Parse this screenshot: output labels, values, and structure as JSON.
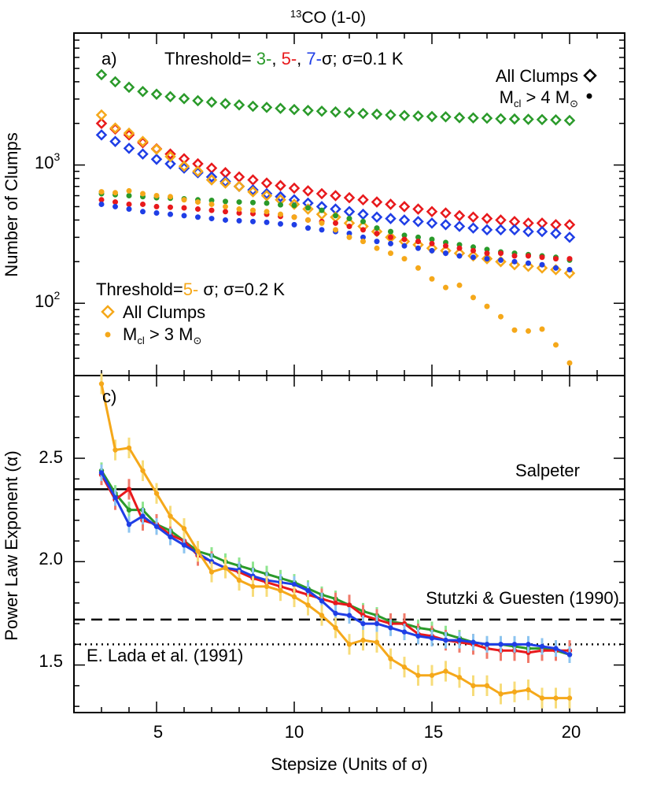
{
  "figure_title": "13CO (1-0)",
  "title_superscript": "13",
  "title_main": "CO (1-0)",
  "colors": {
    "green": "#2a9a2a",
    "red": "#e8191c",
    "blue": "#1f3ee6",
    "orange": "#f5a81a",
    "green_err": "#8fe58f",
    "red_err": "#f07a6a",
    "blue_err": "#8cc4f0",
    "orange_err": "#f7dc7a"
  },
  "chart_data": [
    {
      "panel": "a)",
      "type": "scatter",
      "yscale": "log",
      "xlim": [
        2,
        22
      ],
      "ylim": [
        30,
        9000
      ],
      "ylabel": "Number of Clumps",
      "ytick_base": "10",
      "yticks": [
        {
          "value": 100,
          "exp": "2"
        },
        {
          "value": 1000,
          "exp": "3"
        }
      ],
      "legend_top": {
        "prefix": "Threshold= ",
        "t3": "3-",
        "sep1": ", ",
        "t5": "5-",
        "sep2": ", ",
        "t7": "7-",
        "suffix": "σ; σ=0.1 K",
        "all_clumps": "All Clumps",
        "mass_prefix": "M",
        "mass_sub": "cl",
        "mass_suffix": " > 4 M",
        "mass_sun": "⊙"
      },
      "legend_bottom": {
        "prefix": "Threshold=",
        "t5": "5-",
        "suffix": " σ; σ=0.2 K",
        "all_clumps": "All Clumps",
        "mass_prefix": "M",
        "mass_sub": "cl",
        "mass_suffix": " > 3 M",
        "mass_sun": "⊙"
      },
      "x": [
        3.0,
        3.5,
        4.0,
        4.5,
        5.0,
        5.5,
        6.0,
        6.5,
        7.0,
        7.5,
        8.0,
        8.5,
        9.0,
        9.5,
        10.0,
        10.5,
        11.0,
        11.5,
        12.0,
        12.5,
        13.0,
        13.5,
        14.0,
        14.5,
        15.0,
        15.5,
        16.0,
        16.5,
        17.0,
        17.5,
        18.0,
        18.5,
        19.0,
        19.5,
        20.0
      ],
      "series": [
        {
          "name": "3-sigma all clumps",
          "color_key": "green",
          "marker": "diamond",
          "values": [
            4500,
            4000,
            3650,
            3400,
            3250,
            3120,
            3020,
            2920,
            2850,
            2780,
            2720,
            2660,
            2610,
            2570,
            2520,
            2480,
            2450,
            2420,
            2390,
            2360,
            2330,
            2300,
            2280,
            2260,
            2240,
            2230,
            2200,
            2190,
            2180,
            2160,
            2150,
            2140,
            2130,
            2120,
            2100
          ]
        },
        {
          "name": "5-sigma all clumps",
          "color_key": "red",
          "marker": "diamond",
          "values": [
            2000,
            1820,
            1650,
            1450,
            1310,
            1200,
            1110,
            1020,
            950,
            880,
            820,
            780,
            740,
            710,
            680,
            650,
            620,
            600,
            580,
            560,
            540,
            520,
            500,
            480,
            460,
            450,
            430,
            420,
            410,
            400,
            390,
            380,
            380,
            370,
            370
          ]
        },
        {
          "name": "7-sigma all clumps",
          "color_key": "blue",
          "marker": "diamond",
          "values": [
            1650,
            1480,
            1320,
            1200,
            1100,
            1020,
            950,
            880,
            820,
            760,
            700,
            660,
            620,
            590,
            560,
            530,
            500,
            480,
            460,
            440,
            420,
            410,
            400,
            390,
            380,
            370,
            360,
            350,
            340,
            340,
            340,
            330,
            330,
            320,
            300
          ]
        },
        {
          "name": "5-sigma all clumps (0.2 K)",
          "color_key": "orange",
          "marker": "diamond",
          "values": [
            2300,
            1850,
            1700,
            1480,
            1300,
            1150,
            980,
            900,
            780,
            740,
            700,
            640,
            600,
            560,
            520,
            480,
            440,
            420,
            380,
            360,
            330,
            300,
            280,
            265,
            250,
            240,
            230,
            220,
            210,
            200,
            190,
            185,
            180,
            175,
            165
          ]
        },
        {
          "name": "3-sigma M>4",
          "color_key": "green",
          "marker": "dot",
          "values": [
            620,
            610,
            600,
            590,
            580,
            575,
            570,
            560,
            555,
            545,
            540,
            535,
            530,
            515,
            510,
            490,
            470,
            430,
            410,
            390,
            350,
            330,
            310,
            300,
            290,
            275,
            265,
            255,
            245,
            235,
            230,
            225,
            220,
            215,
            205
          ]
        },
        {
          "name": "5-sigma M>4",
          "color_key": "red",
          "marker": "dot",
          "values": [
            560,
            540,
            520,
            520,
            500,
            495,
            490,
            480,
            470,
            460,
            450,
            445,
            440,
            425,
            420,
            400,
            390,
            380,
            360,
            340,
            320,
            300,
            290,
            280,
            270,
            260,
            250,
            240,
            230,
            230,
            220,
            220,
            215,
            210,
            210
          ]
        },
        {
          "name": "7-sigma M>4",
          "color_key": "blue",
          "marker": "dot",
          "values": [
            520,
            500,
            480,
            460,
            450,
            440,
            430,
            420,
            410,
            400,
            395,
            390,
            385,
            375,
            370,
            350,
            340,
            330,
            320,
            300,
            280,
            270,
            260,
            250,
            240,
            230,
            220,
            215,
            210,
            205,
            200,
            195,
            190,
            180,
            175
          ]
        },
        {
          "name": "5-sigma M>3 (0.2 K)",
          "color_key": "orange",
          "marker": "dot",
          "values": [
            640,
            630,
            650,
            620,
            600,
            590,
            560,
            540,
            520,
            500,
            480,
            470,
            460,
            440,
            420,
            400,
            380,
            340,
            300,
            280,
            250,
            230,
            210,
            180,
            150,
            130,
            135,
            110,
            95,
            80,
            64,
            63,
            65,
            50,
            37
          ]
        }
      ]
    },
    {
      "panel": "c)",
      "type": "line",
      "xlim": [
        2,
        22
      ],
      "ylim": [
        1.27,
        2.9
      ],
      "xlabel_prefix": "Stepsize (Units of ",
      "xlabel_sigma": "σ",
      "xlabel_suffix": ")",
      "ylabel": "Power Law Exponent (α)",
      "xticks": [
        "5",
        "10",
        "15",
        "20"
      ],
      "yticks": [
        "1.5",
        "2.0",
        "2.5"
      ],
      "reference_lines": [
        {
          "label": "Salpeter",
          "value": 2.35,
          "style": "solid"
        },
        {
          "label": "Stutzki & Guesten (1990)",
          "value": 1.72,
          "style": "dashed"
        },
        {
          "label": "E. Lada et al. (1991)",
          "value": 1.6,
          "style": "dotted"
        }
      ],
      "x": [
        3.0,
        3.5,
        4.0,
        4.5,
        5.0,
        5.5,
        6.0,
        6.5,
        7.0,
        7.5,
        8.0,
        8.5,
        9.0,
        9.5,
        10.0,
        10.5,
        11.0,
        11.5,
        12.0,
        12.5,
        13.0,
        13.5,
        14.0,
        14.5,
        15.0,
        15.5,
        16.0,
        16.5,
        17.0,
        17.5,
        18.0,
        18.5,
        19.0,
        19.5,
        20.0
      ],
      "series": [
        {
          "name": "3-sigma (0.1 K)",
          "color_key": "green",
          "err": 0.04,
          "values": [
            2.44,
            2.33,
            2.25,
            2.25,
            2.18,
            2.15,
            2.1,
            2.05,
            2.03,
            2.0,
            1.98,
            1.96,
            1.94,
            1.92,
            1.9,
            1.87,
            1.84,
            1.82,
            1.79,
            1.76,
            1.74,
            1.71,
            1.7,
            1.68,
            1.67,
            1.65,
            1.63,
            1.61,
            1.6,
            1.6,
            1.59,
            1.58,
            1.58,
            1.57,
            1.55
          ]
        },
        {
          "name": "5-sigma (0.1 K)",
          "color_key": "red",
          "err": 0.05,
          "values": [
            2.42,
            2.3,
            2.35,
            2.2,
            2.18,
            2.13,
            2.1,
            2.03,
            2.0,
            1.97,
            1.95,
            1.92,
            1.9,
            1.88,
            1.86,
            1.84,
            1.82,
            1.8,
            1.79,
            1.74,
            1.72,
            1.7,
            1.7,
            1.65,
            1.64,
            1.62,
            1.61,
            1.6,
            1.58,
            1.57,
            1.57,
            1.56,
            1.57,
            1.57,
            1.57
          ]
        },
        {
          "name": "7-sigma (0.1 K)",
          "color_key": "blue",
          "err": 0.04,
          "values": [
            2.43,
            2.31,
            2.18,
            2.22,
            2.17,
            2.12,
            2.08,
            2.04,
            2.0,
            1.97,
            1.96,
            1.93,
            1.91,
            1.9,
            1.89,
            1.86,
            1.81,
            1.75,
            1.74,
            1.7,
            1.7,
            1.68,
            1.66,
            1.64,
            1.63,
            1.62,
            1.62,
            1.61,
            1.6,
            1.6,
            1.6,
            1.6,
            1.59,
            1.58,
            1.55
          ]
        },
        {
          "name": "5-sigma (0.2 K)",
          "color_key": "orange",
          "err": 0.05,
          "values": [
            2.86,
            2.54,
            2.55,
            2.44,
            2.33,
            2.22,
            2.16,
            2.05,
            1.95,
            1.97,
            1.91,
            1.88,
            1.88,
            1.86,
            1.83,
            1.79,
            1.74,
            1.68,
            1.6,
            1.62,
            1.61,
            1.53,
            1.49,
            1.45,
            1.45,
            1.47,
            1.44,
            1.4,
            1.4,
            1.36,
            1.37,
            1.38,
            1.34,
            1.34,
            1.34
          ]
        }
      ]
    }
  ]
}
